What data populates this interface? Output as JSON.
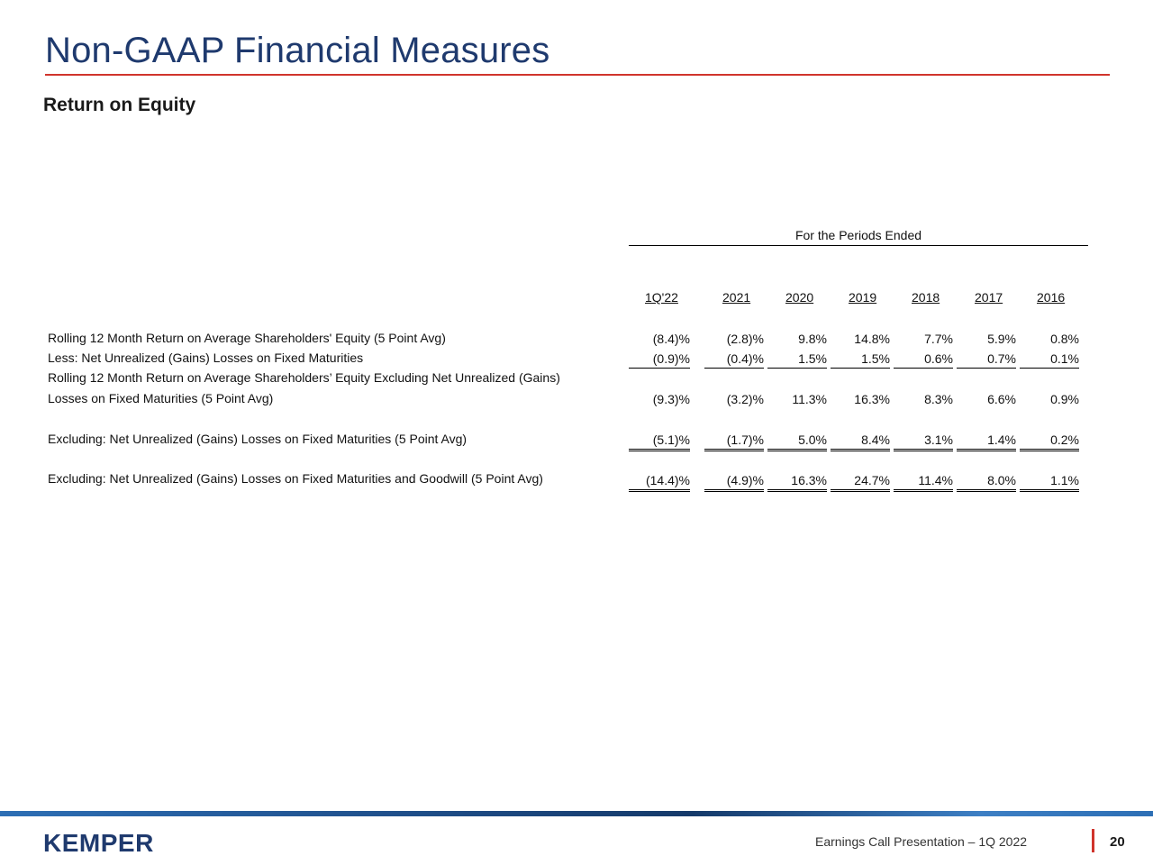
{
  "slide": {
    "title": "Non-GAAP Financial Measures",
    "subtitle": "Return on Equity"
  },
  "table": {
    "period_header": "For the Periods Ended",
    "columns": [
      "1Q'22",
      "2021",
      "2020",
      "2019",
      "2018",
      "2017",
      "2016"
    ],
    "rows": [
      {
        "label": "Rolling 12 Month Return on Average Shareholders' Equity (5 Point Avg)",
        "values": [
          "(8.4)%",
          "(2.8)%",
          "9.8%",
          "14.8%",
          "7.7%",
          "5.9%",
          "0.8%"
        ]
      },
      {
        "label": "Less: Net Unrealized (Gains) Losses on Fixed Maturities",
        "values": [
          "(0.9)%",
          "(0.4)%",
          "1.5%",
          "1.5%",
          "0.6%",
          "0.7%",
          "0.1%"
        ]
      },
      {
        "label_line1": "Rolling 12 Month Return on Average Shareholders’ Equity Excluding Net Unrealized (Gains)",
        "label_line2": "Losses on Fixed Maturities (5 Point Avg)",
        "values": [
          "(9.3)%",
          "(3.2)%",
          "11.3%",
          "16.3%",
          "8.3%",
          "6.6%",
          "0.9%"
        ]
      },
      {
        "label": "Excluding: Net Unrealized (Gains) Losses on Fixed Maturities (5 Point Avg)",
        "values": [
          "(5.1)%",
          "(1.7)%",
          "5.0%",
          "8.4%",
          "3.1%",
          "1.4%",
          "0.2%"
        ]
      },
      {
        "label": "Excluding: Net Unrealized (Gains) Losses on Fixed Maturities and Goodwill (5 Point Avg)",
        "values": [
          "(14.4)%",
          "(4.9)%",
          "16.3%",
          "24.7%",
          "11.4%",
          "8.0%",
          "1.1%"
        ]
      }
    ]
  },
  "footer": {
    "logo_text": "KEMPER",
    "presentation_label": "Earnings Call Presentation – 1Q 2022",
    "page_number": "20"
  },
  "colors": {
    "title_blue": "#1f3a6e",
    "accent_red": "#d0342c"
  }
}
